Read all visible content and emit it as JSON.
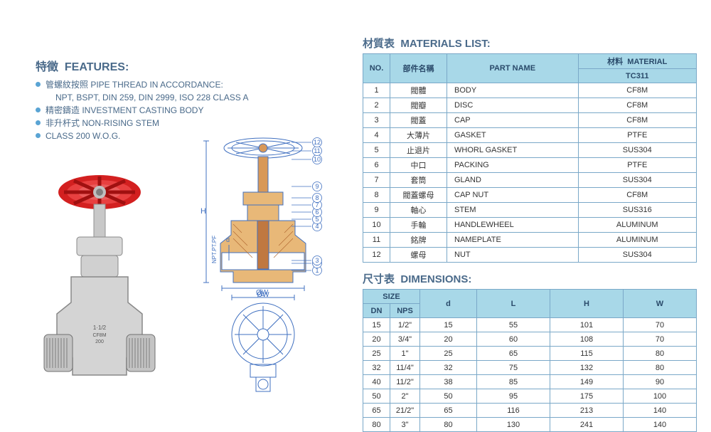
{
  "features": {
    "title_cn": "特徵",
    "title_en": "FEATURES:",
    "items": [
      {
        "cn": "管螺紋按照",
        "en": "PIPE THREAD IN ACCORDANCE:",
        "sub": "NPT, BSPT, DIN 259, DIN 2999, ISO 228 CLASS A"
      },
      {
        "cn": "精密鑄造",
        "en": "INVESTMENT CASTING BODY"
      },
      {
        "cn": "非升杆式",
        "en": "NON-RISING STEM"
      },
      {
        "cn": "",
        "en": "CLASS 200 W.O.G."
      }
    ]
  },
  "materials": {
    "title_cn": "材質表",
    "title_en": "MATERIALS LIST:",
    "headers": {
      "no": "NO.",
      "part_cn": "部件名稱",
      "part_en": "PART NAME",
      "mat_cn": "材料",
      "mat_en": "MATERIAL",
      "model": "TC311"
    },
    "rows": [
      {
        "no": "1",
        "cn": "閥體",
        "en": "BODY",
        "mat": "CF8M"
      },
      {
        "no": "2",
        "cn": "閥瓣",
        "en": "DISC",
        "mat": "CF8M"
      },
      {
        "no": "3",
        "cn": "閥蓋",
        "en": "CAP",
        "mat": "CF8M"
      },
      {
        "no": "4",
        "cn": "大薄片",
        "en": "GASKET",
        "mat": "PTFE"
      },
      {
        "no": "5",
        "cn": "止退片",
        "en": "WHORL GASKET",
        "mat": "SUS304"
      },
      {
        "no": "6",
        "cn": "中口",
        "en": "PACKING",
        "mat": "PTFE"
      },
      {
        "no": "7",
        "cn": "套筒",
        "en": "GLAND",
        "mat": "SUS304"
      },
      {
        "no": "8",
        "cn": "閥蓋螺母",
        "en": "CAP NUT",
        "mat": "CF8M"
      },
      {
        "no": "9",
        "cn": "軸心",
        "en": "STEM",
        "mat": "SUS316"
      },
      {
        "no": "10",
        "cn": "手輪",
        "en": "HANDLEWHEEL",
        "mat": "ALUMINUM"
      },
      {
        "no": "11",
        "cn": "銘牌",
        "en": "NAMEPLATE",
        "mat": "ALUMINUM"
      },
      {
        "no": "12",
        "cn": "螺母",
        "en": "NUT",
        "mat": "SUS304"
      }
    ]
  },
  "dimensions": {
    "title_cn": "尺寸表",
    "title_en": "DIMENSIONS:",
    "headers": {
      "size": "SIZE",
      "dn": "DN",
      "nps": "NPS",
      "d": "d",
      "L": "L",
      "H": "H",
      "W": "W"
    },
    "rows": [
      {
        "dn": "15",
        "nps": "1/2\"",
        "d": "15",
        "L": "55",
        "H": "101",
        "W": "70"
      },
      {
        "dn": "20",
        "nps": "3/4\"",
        "d": "20",
        "L": "60",
        "H": "108",
        "W": "70"
      },
      {
        "dn": "25",
        "nps": "1\"",
        "d": "25",
        "L": "65",
        "H": "115",
        "W": "80"
      },
      {
        "dn": "32",
        "nps": "11/4\"",
        "d": "32",
        "L": "75",
        "H": "132",
        "W": "80"
      },
      {
        "dn": "40",
        "nps": "11/2\"",
        "d": "38",
        "L": "85",
        "H": "149",
        "W": "90"
      },
      {
        "dn": "50",
        "nps": "2\"",
        "d": "50",
        "L": "95",
        "H": "175",
        "W": "100"
      },
      {
        "dn": "65",
        "nps": "21/2\"",
        "d": "65",
        "L": "116",
        "H": "213",
        "W": "140"
      },
      {
        "dn": "80",
        "nps": "3\"",
        "d": "80",
        "L": "130",
        "H": "241",
        "W": "140"
      }
    ]
  },
  "colors": {
    "heading": "#4a6a8a",
    "bullet": "#5aa4d4",
    "th_bg": "#a8d8e8",
    "border": "#7aa8c8",
    "handwheel": "#d32020",
    "body_metal": "#d0d0d0",
    "diagram_line": "#4070c0",
    "diagram_fill": "#d89858"
  },
  "diagram": {
    "callouts": [
      "1",
      "2",
      "3",
      "4",
      "5",
      "6",
      "7",
      "8",
      "9",
      "10",
      "11",
      "12"
    ],
    "dims": [
      "H",
      "L",
      "d",
      "ØW",
      "NPT.PT.PF"
    ]
  }
}
